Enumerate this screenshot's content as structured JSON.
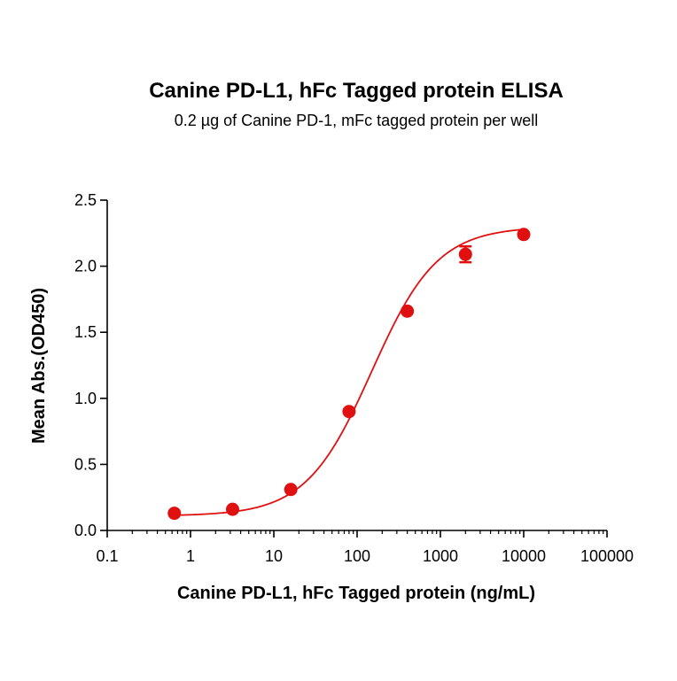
{
  "chart_data": {
    "type": "scatter",
    "title": "Canine PD-L1, hFc Tagged protein ELISA",
    "subtitle": "0.2 µg of Canine PD-1, mFc tagged protein per well",
    "xlabel": "Canine PD-L1, hFc Tagged protein (ng/mL)",
    "ylabel": "Mean Abs.(OD450)",
    "xscale": "log",
    "xlim": [
      0.1,
      100000
    ],
    "ylim": [
      0,
      2.5
    ],
    "x_ticks": [
      0.1,
      1,
      10,
      100,
      1000,
      10000,
      100000
    ],
    "x_tick_labels": [
      "0.1",
      "1",
      "10",
      "100",
      "1000",
      "10000",
      "100000"
    ],
    "y_ticks": [
      0,
      0.5,
      1,
      1.5,
      2,
      2.5
    ],
    "y_tick_labels": [
      "0.0",
      "0.5",
      "1.0",
      "1.5",
      "2.0",
      "2.5"
    ],
    "grid": false,
    "color": "#e01010",
    "series": [
      {
        "x": [
          0.64,
          3.2,
          16,
          80,
          400,
          2000,
          10000
        ],
        "y": [
          0.13,
          0.16,
          0.31,
          0.9,
          1.66,
          2.09,
          2.24
        ],
        "yerr": [
          0.01,
          0.01,
          0.01,
          0.01,
          0.01,
          0.06,
          0.01
        ]
      }
    ],
    "fit_curve": {
      "model": "4PL",
      "bottom": 0.11,
      "top": 2.3,
      "ec50": 150,
      "hill": 1.1
    }
  }
}
